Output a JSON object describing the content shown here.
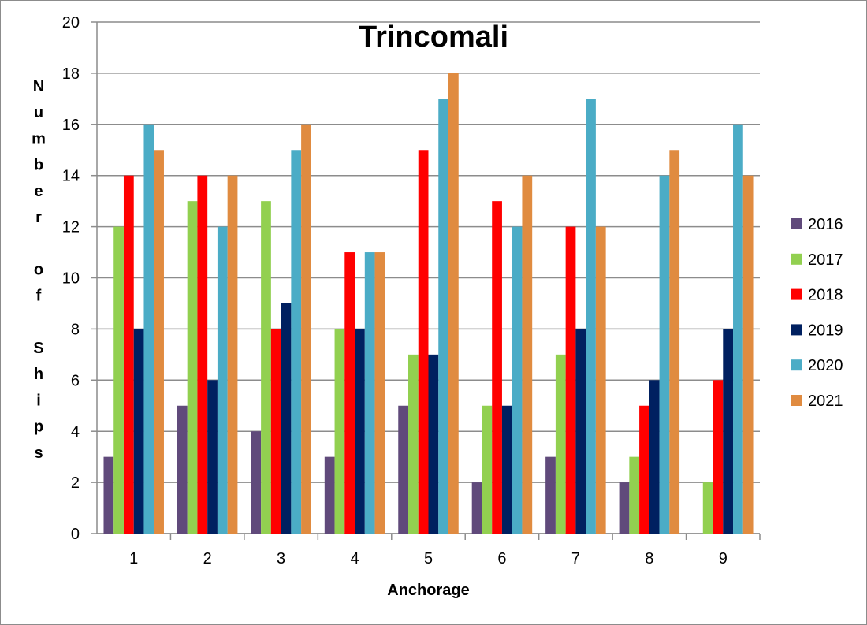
{
  "chart_data": {
    "type": "bar",
    "title": "Trincomali",
    "xlabel": "Anchorage",
    "ylabel": "Number of Ships",
    "ylim": [
      0,
      20
    ],
    "yticks": [
      0,
      2,
      4,
      6,
      8,
      10,
      12,
      14,
      16,
      18,
      20
    ],
    "grid": true,
    "legend_position": "right",
    "categories": [
      "1",
      "2",
      "3",
      "4",
      "5",
      "6",
      "7",
      "8",
      "9"
    ],
    "series": [
      {
        "name": "2016",
        "color": "#604a7b",
        "values": [
          3,
          5,
          4,
          3,
          5,
          2,
          3,
          2,
          0
        ]
      },
      {
        "name": "2017",
        "color": "#92d050",
        "values": [
          12,
          13,
          13,
          8,
          7,
          5,
          7,
          3,
          2
        ]
      },
      {
        "name": "2018",
        "color": "#ff0000",
        "values": [
          14,
          14,
          8,
          11,
          15,
          13,
          12,
          5,
          6
        ]
      },
      {
        "name": "2019",
        "color": "#002060",
        "values": [
          8,
          6,
          9,
          8,
          7,
          5,
          8,
          6,
          8
        ]
      },
      {
        "name": "2020",
        "color": "#4bacc6",
        "values": [
          16,
          12,
          15,
          11,
          17,
          12,
          17,
          14,
          16
        ]
      },
      {
        "name": "2021",
        "color": "#e08b40",
        "values": [
          15,
          14,
          16,
          11,
          18,
          14,
          12,
          15,
          14
        ]
      }
    ]
  }
}
